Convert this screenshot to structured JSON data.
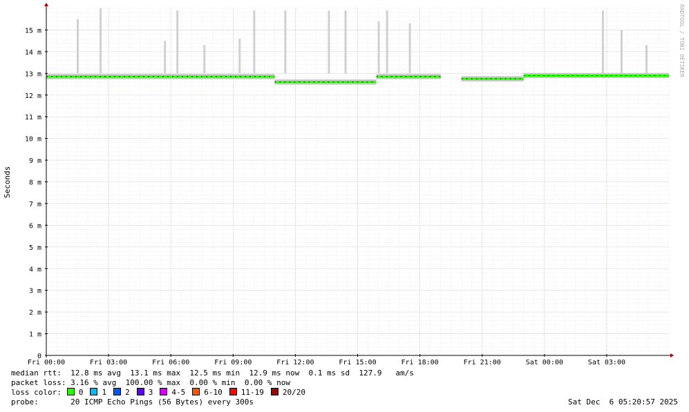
{
  "chart_data": {
    "type": "line",
    "title": "",
    "ylabel": "Seconds",
    "watermark": "RRDTOOL / TOBI OETIKER",
    "ylim_ms": [
      0,
      16
    ],
    "y_ticks": [
      {
        "v": 0,
        "label": "0"
      },
      {
        "v": 1,
        "label": "1 m"
      },
      {
        "v": 2,
        "label": "2 m"
      },
      {
        "v": 3,
        "label": "3 m"
      },
      {
        "v": 4,
        "label": "4 m"
      },
      {
        "v": 5,
        "label": "5 m"
      },
      {
        "v": 6,
        "label": "6 m"
      },
      {
        "v": 7,
        "label": "7 m"
      },
      {
        "v": 8,
        "label": "8 m"
      },
      {
        "v": 9,
        "label": "9 m"
      },
      {
        "v": 10,
        "label": "10 m"
      },
      {
        "v": 11,
        "label": "11 m"
      },
      {
        "v": 12,
        "label": "12 m"
      },
      {
        "v": 13,
        "label": "13 m"
      },
      {
        "v": 14,
        "label": "14 m"
      },
      {
        "v": 15,
        "label": "15 m"
      }
    ],
    "xlim_hours": [
      0,
      30
    ],
    "x_ticks": [
      {
        "h": 0,
        "label": "Fri 00:00"
      },
      {
        "h": 3,
        "label": "Fri 03:00"
      },
      {
        "h": 6,
        "label": "Fri 06:00"
      },
      {
        "h": 9,
        "label": "Fri 09:00"
      },
      {
        "h": 12,
        "label": "Fri 12:00"
      },
      {
        "h": 15,
        "label": "Fri 15:00"
      },
      {
        "h": 18,
        "label": "Fri 18:00"
      },
      {
        "h": 21,
        "label": "Fri 21:00"
      },
      {
        "h": 24,
        "label": "Sat 00:00"
      },
      {
        "h": 27,
        "label": "Sat 03:00"
      }
    ],
    "series": [
      {
        "name": "median rtt",
        "segments": [
          {
            "from_h": 0.0,
            "to_h": 11.0,
            "level_ms": 12.85
          },
          {
            "from_h": 11.0,
            "to_h": 15.9,
            "level_ms": 12.6
          },
          {
            "from_h": 15.9,
            "to_h": 19.0,
            "level_ms": 12.85
          }
        ],
        "gap_h": [
          19.0,
          20.0
        ],
        "after_gap": [
          {
            "from_h": 20.0,
            "to_h": 23.0,
            "level_ms": 12.75
          },
          {
            "from_h": 23.0,
            "to_h": 30.0,
            "level_ms": 12.9
          }
        ]
      }
    ],
    "spikes_ms": [
      {
        "h": 1.5,
        "v": 15.5
      },
      {
        "h": 2.6,
        "v": 16.0
      },
      {
        "h": 5.7,
        "v": 14.5
      },
      {
        "h": 6.3,
        "v": 15.9
      },
      {
        "h": 7.6,
        "v": 14.3
      },
      {
        "h": 9.3,
        "v": 14.6
      },
      {
        "h": 10.0,
        "v": 15.9
      },
      {
        "h": 11.5,
        "v": 15.9
      },
      {
        "h": 13.6,
        "v": 15.9
      },
      {
        "h": 14.4,
        "v": 15.9
      },
      {
        "h": 16.0,
        "v": 15.4
      },
      {
        "h": 16.4,
        "v": 15.9
      },
      {
        "h": 17.5,
        "v": 15.3
      },
      {
        "h": 26.8,
        "v": 15.9
      },
      {
        "h": 27.7,
        "v": 15.0
      },
      {
        "h": 28.9,
        "v": 14.3
      }
    ],
    "legend": {
      "rtt": {
        "label": "median rtt:",
        "avg": "12.8 ms avg",
        "max": "13.1 ms max",
        "min": "12.5 ms min",
        "now": "12.9 ms now",
        "sd": "0.1 ms sd",
        "rate": "127.9",
        "rate_unit": "am/s"
      },
      "loss": {
        "label": "packet loss:",
        "avg": "3.16 % avg",
        "max": "100.00 % max",
        "min": "0.00 % min",
        "now": "0.00 % now"
      },
      "loss_color_label": "loss color:",
      "loss_colors": [
        {
          "label": "0",
          "color": "#26ff00"
        },
        {
          "label": "1",
          "color": "#00b8ff"
        },
        {
          "label": "2",
          "color": "#0059ff"
        },
        {
          "label": "3",
          "color": "#5e00ff"
        },
        {
          "label": "4-5",
          "color": "#d600ff"
        },
        {
          "label": "6-10",
          "color": "#ff5500"
        },
        {
          "label": "11-19",
          "color": "#ff0000"
        },
        {
          "label": "20/20",
          "color": "#a10000"
        }
      ],
      "probe_label": "probe:",
      "probe_text": "20 ICMP Echo Pings (56 Bytes) every 300s",
      "timestamp": "Sat Dec  6 05:20:57 2025"
    }
  }
}
